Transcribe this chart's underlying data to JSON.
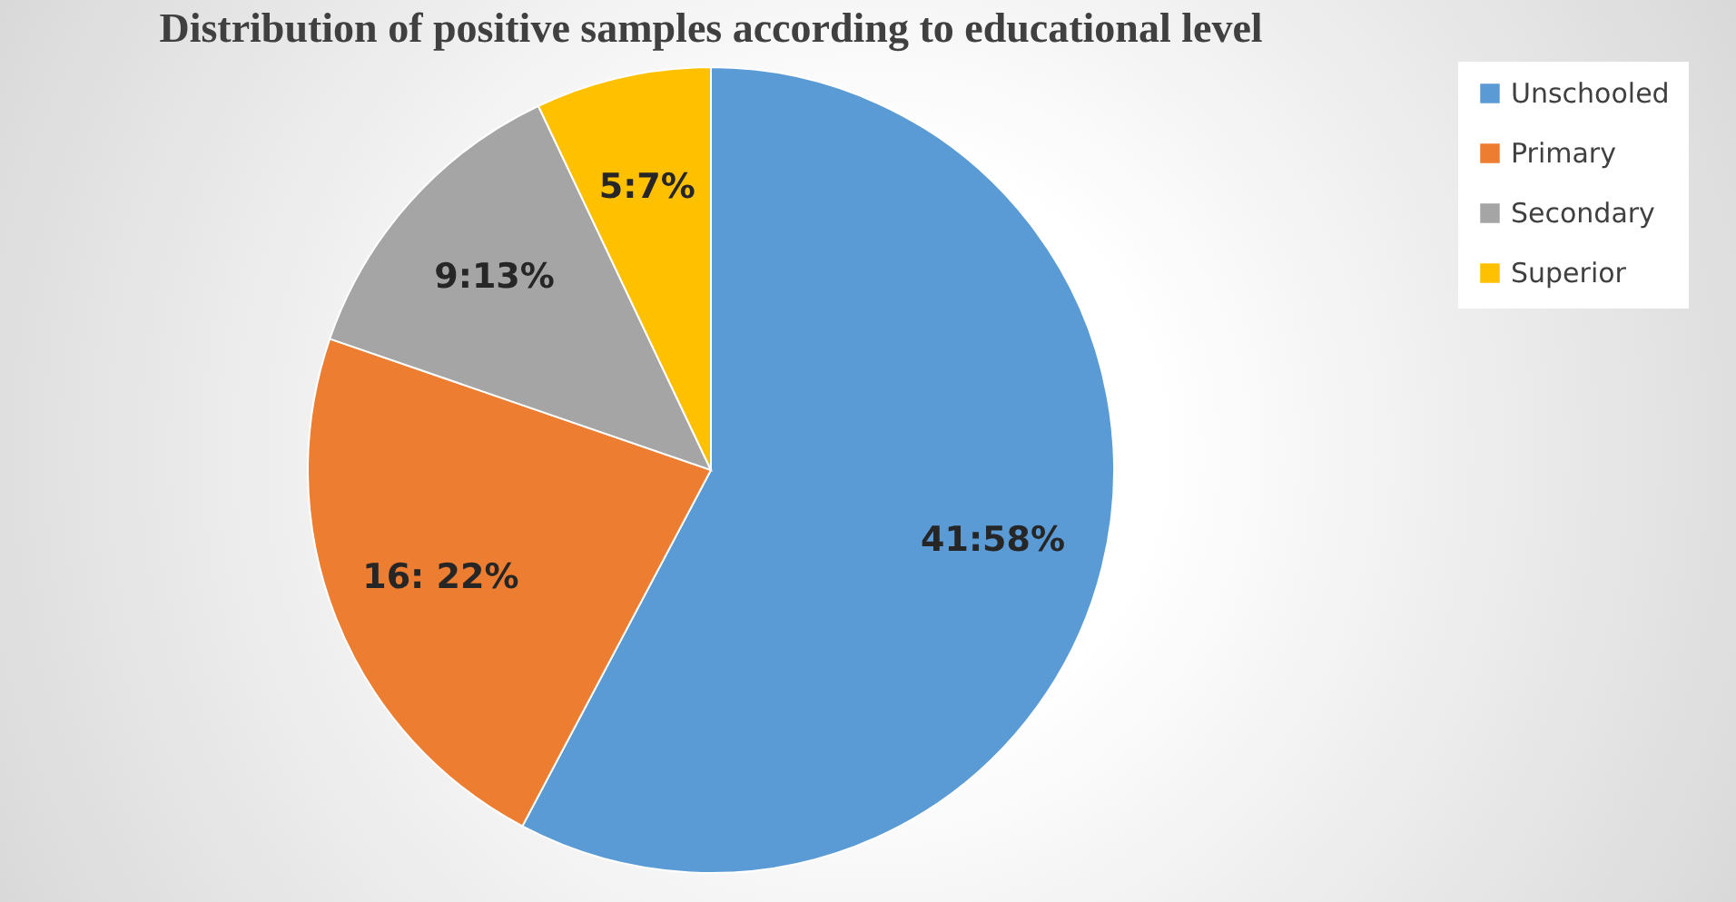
{
  "chart_data": {
    "type": "pie",
    "title": "Distribution of positive samples according to educational level",
    "categories": [
      "Unschooled",
      "Primary",
      "Secondary",
      "Superior"
    ],
    "values": [
      41,
      16,
      9,
      5
    ],
    "value_labels": [
      "41:58%",
      "16: 22%",
      "9:13%",
      "5:7%"
    ],
    "colors": [
      "#5b9bd5",
      "#ed7d31",
      "#a5a5a5",
      "#ffc000"
    ],
    "legend": "right"
  }
}
